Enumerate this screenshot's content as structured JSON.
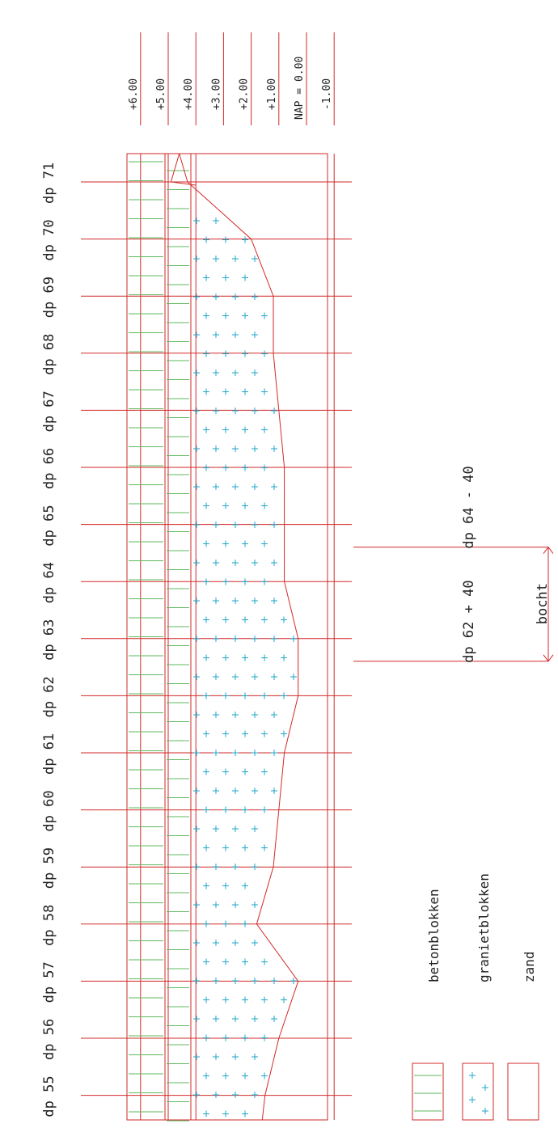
{
  "title": "",
  "colors": {
    "grid_line": "#d22a2a",
    "beton_hatch": "#5fb85f",
    "graniet_cross": "#1fa7c9",
    "text": "#222222"
  },
  "levels": [
    {
      "label": "+6.00",
      "value": 6
    },
    {
      "label": "+5.00",
      "value": 5
    },
    {
      "label": "+4.00",
      "value": 4
    },
    {
      "label": "+3.00",
      "value": 3
    },
    {
      "label": "+2.00",
      "value": 2
    },
    {
      "label": "+1.00",
      "value": 1
    },
    {
      "label": "NAP  =  0.00",
      "value": 0
    },
    {
      "label": "-1.00",
      "value": -1
    }
  ],
  "profiles": [
    {
      "label": "dp 71",
      "graniet_top": 4.3,
      "zand_top": 4.3
    },
    {
      "label": "dp 70",
      "graniet_top": 4.0,
      "zand_top": 2.0
    },
    {
      "label": "dp 69",
      "graniet_top": 4.0,
      "zand_top": 1.2
    },
    {
      "label": "dp 68",
      "graniet_top": 4.0,
      "zand_top": 1.2
    },
    {
      "label": "dp 67",
      "graniet_top": 4.0,
      "zand_top": 1.0
    },
    {
      "label": "dp 66",
      "graniet_top": 4.0,
      "zand_top": 0.8
    },
    {
      "label": "dp 65",
      "graniet_top": 4.0,
      "zand_top": 0.8
    },
    {
      "label": "dp 64",
      "graniet_top": 4.0,
      "zand_top": 0.8
    },
    {
      "label": "dp 63",
      "graniet_top": 4.0,
      "zand_top": 0.3
    },
    {
      "label": "dp 62",
      "graniet_top": 4.0,
      "zand_top": 0.3
    },
    {
      "label": "dp 61",
      "graniet_top": 4.0,
      "zand_top": 0.8
    },
    {
      "label": "dp 60",
      "graniet_top": 4.0,
      "zand_top": 1.0
    },
    {
      "label": "dp 59",
      "graniet_top": 4.0,
      "zand_top": 1.2
    },
    {
      "label": "dp 58",
      "graniet_top": 4.0,
      "zand_top": 1.8
    },
    {
      "label": "dp 57",
      "graniet_top": 4.0,
      "zand_top": 0.3
    },
    {
      "label": "dp 56",
      "graniet_top": 4.0,
      "zand_top": 1.0
    },
    {
      "label": "dp 55",
      "graniet_top": 4.0,
      "zand_top": 1.5
    }
  ],
  "bend": {
    "label": "bocht",
    "start_label": "dp 62 + 40",
    "end_label": "dp 64 - 40"
  },
  "legend": [
    {
      "key": "beton",
      "label": "betonblokken"
    },
    {
      "key": "graniet",
      "label": "granietblokken"
    },
    {
      "key": "zand",
      "label": "zand"
    }
  ]
}
